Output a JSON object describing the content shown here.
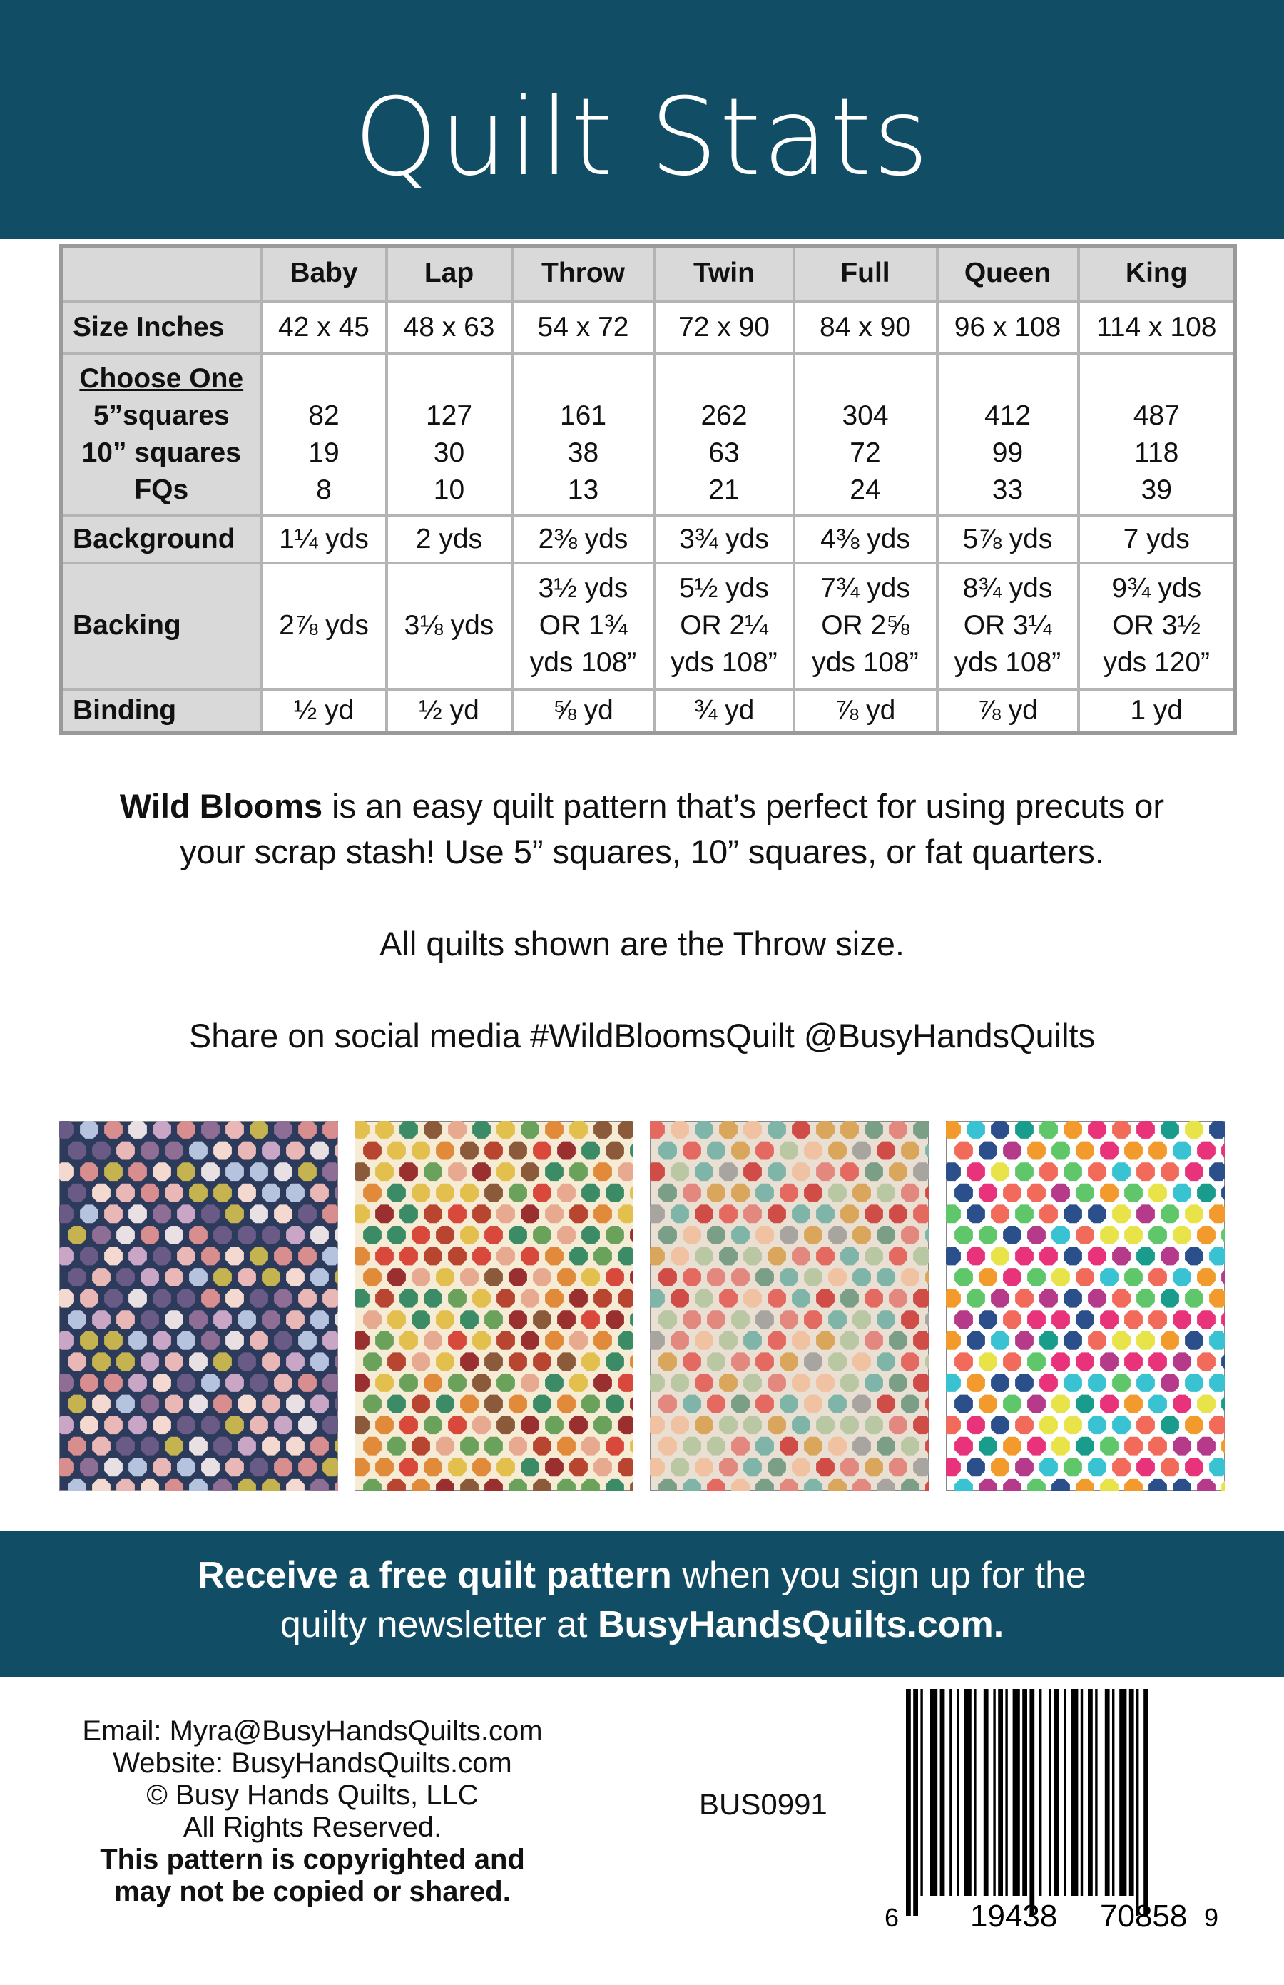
{
  "header": {
    "title": "Quilt Stats",
    "bg_color": "#114e66"
  },
  "table": {
    "columns": [
      "Baby",
      "Lap",
      "Throw",
      "Twin",
      "Full",
      "Queen",
      "King"
    ],
    "size": {
      "label": "Size Inches",
      "values": [
        "42 x 45",
        "48 x 63",
        "54 x 72",
        "72 x 90",
        "84 x 90",
        "96 x 108",
        "114 x 108"
      ]
    },
    "choose": {
      "label": "Choose One",
      "sub_labels": [
        "5”squares",
        "10” squares",
        "FQs"
      ],
      "values": [
        [
          "82",
          "19",
          "8"
        ],
        [
          "127",
          "30",
          "10"
        ],
        [
          "161",
          "38",
          "13"
        ],
        [
          "262",
          "63",
          "21"
        ],
        [
          "304",
          "72",
          "24"
        ],
        [
          "412",
          "99",
          "33"
        ],
        [
          "487",
          "118",
          "39"
        ]
      ]
    },
    "background": {
      "label": "Background",
      "values": [
        "1¼ yds",
        "2 yds",
        "2⅜ yds",
        "3¾ yds",
        "4⅜ yds",
        "5⅞ yds",
        "7 yds"
      ]
    },
    "backing": {
      "label": "Backing",
      "values": [
        [
          "2⅞ yds"
        ],
        [
          "3⅛ yds"
        ],
        [
          "3½ yds",
          "OR 1¾",
          "yds 108”"
        ],
        [
          "5½ yds",
          "OR 2¼",
          "yds 108”"
        ],
        [
          "7¾ yds",
          "OR 2⅝",
          "yds 108”"
        ],
        [
          "8¾ yds",
          "OR 3¼",
          "yds 108”"
        ],
        [
          "9¾ yds",
          "OR 3½",
          "yds 120”"
        ]
      ]
    },
    "binding": {
      "label": "Binding",
      "values": [
        "½ yd",
        "½ yd",
        "⅝ yd",
        "¾ yd",
        "⅞ yd",
        "⅞ yd",
        "1 yd"
      ]
    }
  },
  "description": {
    "line1_bold": "Wild Blooms",
    "line1_rest": " is an easy quilt pattern that’s perfect for using precuts or",
    "line2": "your scrap stash!  Use 5” squares, 10” squares, or fat quarters.",
    "throw_note": "All quilts shown are the Throw size.",
    "social": "Share on social media  #WildBloomsQuilt @BusyHandsQuilts"
  },
  "quilts": [
    {
      "background": "#2c3a5c",
      "colors": [
        "#e9b7b5",
        "#c9a5c6",
        "#8f6e96",
        "#c5b34f",
        "#e8e0e3",
        "#b5c3de",
        "#6a5a86",
        "#d88d8f",
        "#f3d9cf"
      ]
    },
    {
      "background": "#f6ecd6",
      "colors": [
        "#3b8c66",
        "#d8483b",
        "#e08a3a",
        "#8a5a3a",
        "#b7452f",
        "#e3c04e",
        "#6ba25b",
        "#9a2f2f",
        "#e7a98f"
      ]
    },
    {
      "background": "#e9dfd3",
      "colors": [
        "#e2887f",
        "#7fb4a8",
        "#d9a65c",
        "#b9c7a2",
        "#e46a61",
        "#a8a5a1",
        "#f0c2a2",
        "#7b9e86",
        "#cf4c47"
      ]
    },
    {
      "background": "#ffffff",
      "colors": [
        "#1a9c8c",
        "#e8337a",
        "#f29a2c",
        "#2a4f8a",
        "#5fc76a",
        "#e9e34a",
        "#b53a8a",
        "#38c2d2",
        "#f16a5a"
      ]
    }
  ],
  "banner": {
    "bold1": "Receive a free quilt pattern",
    "rest1": " when you sign up for the",
    "rest2": "quilty newsletter at ",
    "bold2": "BusyHandsQuilts.com."
  },
  "footer": {
    "email": "Email: Myra@BusyHandsQuilts.com",
    "website": "Website: BusyHandsQuilts.com",
    "copyright": "© Busy Hands Quilts, LLC",
    "rights": "All Rights Reserved.",
    "notice1": "This pattern is copyrighted and",
    "notice2": "may not be copied or shared.",
    "sku": "BUS0991",
    "barcode": {
      "first": "6",
      "left": "19438",
      "right": "70858",
      "last": "9"
    }
  }
}
